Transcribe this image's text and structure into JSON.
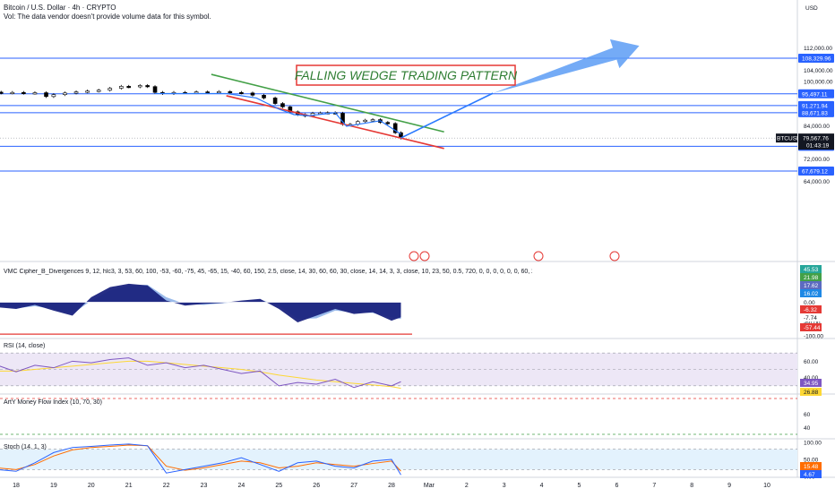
{
  "header": {
    "symbol_line": "Bitcoin / U.S. Dollar · 4h · CRYPTO",
    "vol_line": "Vol: The data vendor doesn't provide volume data for this symbol."
  },
  "currency_label": "USD",
  "annotation": {
    "text": "FALLING WEDGE TRADING PATTERN",
    "color": "#2e7d32",
    "border_color": "#e53935"
  },
  "symbol_tag": {
    "symbol": "BTCUSD",
    "price": "79,567.76",
    "countdown": "01:43:19"
  },
  "colors": {
    "level_line": "#2962ff",
    "upper_trendline": "#43a047",
    "lower_trendline": "#e53935",
    "projection": "#2979ff",
    "arrow": "#5c9cf5",
    "candle_up": "#ffffff",
    "candle_down": "#000000",
    "wave_dark": "#1a237e",
    "wave_light": "#8fb2e8",
    "rsi_line": "#7e57c2",
    "rsi_ma": "#fdd835",
    "stoch_k": "#2962ff",
    "stoch_d": "#ff6d00"
  },
  "chart_data": [
    {
      "type": "line",
      "title": "Bitcoin / U.S. Dollar · 4h · CRYPTO",
      "ylabel": "USD",
      "ylim": [
        62000,
        114000
      ],
      "y_ticks": [
        "112,000.00",
        "104,000.00",
        "100,000.00",
        "92,000.00",
        "84,000.00",
        "72,000.00",
        "64,000.00"
      ],
      "x_ticks": [
        "18",
        "19",
        "20",
        "21",
        "22",
        "23",
        "24",
        "25",
        "26",
        "27",
        "28",
        "Mar",
        "2",
        "3",
        "4",
        "5",
        "6",
        "7",
        "8",
        "9",
        "10"
      ],
      "levels": [
        {
          "label": "108,329.96",
          "value": 108329.96
        },
        {
          "label": "95,497.11",
          "value": 95497.11
        },
        {
          "label": "91,271.94",
          "value": 91271.94
        },
        {
          "label": "88,671.83",
          "value": 88671.83
        },
        {
          "label": "76,605.42",
          "value": 76605.42
        },
        {
          "label": "67,679.12",
          "value": 67679.12
        }
      ],
      "last_price": 79567.76,
      "series": [
        {
          "name": "BTCUSD",
          "points": [
            {
              "x": 17.0,
              "y": 95900
            },
            {
              "x": 17.3,
              "y": 96100
            },
            {
              "x": 17.6,
              "y": 95800
            },
            {
              "x": 17.9,
              "y": 96000
            },
            {
              "x": 18.2,
              "y": 95700
            },
            {
              "x": 18.5,
              "y": 95900
            },
            {
              "x": 18.8,
              "y": 94500
            },
            {
              "x": 19.0,
              "y": 95200
            },
            {
              "x": 19.3,
              "y": 95800
            },
            {
              "x": 19.6,
              "y": 96200
            },
            {
              "x": 19.9,
              "y": 96500
            },
            {
              "x": 20.2,
              "y": 96800
            },
            {
              "x": 20.5,
              "y": 97500
            },
            {
              "x": 20.8,
              "y": 98200
            },
            {
              "x": 21.0,
              "y": 98000
            },
            {
              "x": 21.3,
              "y": 98500
            },
            {
              "x": 21.5,
              "y": 98100
            },
            {
              "x": 21.7,
              "y": 96000
            },
            {
              "x": 21.9,
              "y": 95600
            },
            {
              "x": 22.2,
              "y": 96000
            },
            {
              "x": 22.5,
              "y": 95900
            },
            {
              "x": 22.8,
              "y": 96200
            },
            {
              "x": 23.1,
              "y": 96100
            },
            {
              "x": 23.4,
              "y": 96300
            },
            {
              "x": 23.7,
              "y": 96000
            },
            {
              "x": 24.0,
              "y": 95800
            },
            {
              "x": 24.3,
              "y": 95000
            },
            {
              "x": 24.6,
              "y": 94000
            },
            {
              "x": 24.9,
              "y": 92000
            },
            {
              "x": 25.1,
              "y": 90800
            },
            {
              "x": 25.3,
              "y": 89000
            },
            {
              "x": 25.5,
              "y": 88000
            },
            {
              "x": 25.7,
              "y": 87500
            },
            {
              "x": 25.9,
              "y": 88500
            },
            {
              "x": 26.1,
              "y": 88600
            },
            {
              "x": 26.3,
              "y": 88700
            },
            {
              "x": 26.5,
              "y": 88500
            },
            {
              "x": 26.7,
              "y": 84500
            },
            {
              "x": 26.9,
              "y": 84500
            },
            {
              "x": 27.1,
              "y": 85500
            },
            {
              "x": 27.3,
              "y": 86000
            },
            {
              "x": 27.5,
              "y": 86200
            },
            {
              "x": 27.7,
              "y": 85200
            },
            {
              "x": 27.9,
              "y": 84800
            },
            {
              "x": 28.1,
              "y": 81500
            },
            {
              "x": 28.25,
              "y": 79567.76
            }
          ]
        }
      ],
      "upper_trendline": [
        {
          "x": 23.2,
          "y": 102500
        },
        {
          "x": 29.4,
          "y": 81800
        }
      ],
      "lower_trendline": [
        {
          "x": 23.6,
          "y": 94800
        },
        {
          "x": 29.4,
          "y": 75800
        }
      ],
      "projection": [
        {
          "x": 28.25,
          "y": 79600
        },
        {
          "x": 30.7,
          "y": 95700
        }
      ],
      "projection_arrow": [
        {
          "x": 30.7,
          "y": 95700
        },
        {
          "x": 34.6,
          "y": 112800
        }
      ]
    },
    {
      "type": "area",
      "title": "VMC Cipher_B_Divergences 9, 12, hlc3, 3, 53, 60, 100, -53, -60, -75, 45, -65, 15, -40, 60, 150, 2.5, close, 14, 30, 60, 60, 30, close, 14, 14, 3, 3, close, 10, 23, 50, 0.5, 720, 0, 0, 0, 0, 0, 0, 60, 240, 0, 0, 240",
      "ylim": [
        -100,
        100
      ],
      "y_ticks": [
        "60.00",
        "0.00",
        "-60.00",
        "-100.00"
      ],
      "value_tags": [
        {
          "label": "45.53",
          "color": "#26a69a"
        },
        {
          "label": "21.98",
          "color": "#43a047"
        },
        {
          "label": "17.62",
          "color": "#5c6bc0"
        },
        {
          "label": "16.02",
          "color": "#1e88e5"
        },
        {
          "label": "-6.32",
          "color": "#e53935"
        },
        {
          "label": "-7.74",
          "color": "#ffffff"
        },
        {
          "label": "-57.44",
          "color": "#e53935"
        }
      ],
      "x": [
        17.0,
        17.5,
        18.0,
        18.5,
        19.0,
        19.5,
        20.0,
        20.5,
        21.0,
        21.5,
        22.0,
        22.5,
        23.0,
        23.5,
        24.0,
        24.5,
        25.0,
        25.5,
        26.0,
        26.5,
        27.0,
        27.5,
        28.0,
        28.25
      ],
      "series": [
        {
          "values": [
            -5,
            -15,
            -20,
            -8,
            -25,
            -40,
            15,
            45,
            55,
            50,
            5,
            -10,
            -5,
            -2,
            5,
            10,
            -20,
            -60,
            -40,
            -20,
            -35,
            -30,
            -55,
            -45
          ]
        },
        {
          "values": [
            -5,
            -10,
            -18,
            -12,
            -20,
            -35,
            5,
            35,
            50,
            52,
            15,
            -5,
            -8,
            -3,
            2,
            8,
            -10,
            -50,
            -48,
            -25,
            -30,
            -32,
            -45,
            -50
          ]
        }
      ]
    },
    {
      "type": "line",
      "title": "RSI (14, close)",
      "ylim": [
        20,
        80
      ],
      "y_ticks": [
        "60.00",
        "40.00"
      ],
      "value_tags": [
        {
          "label": "34.95",
          "color": "#7e57c2"
        },
        {
          "label": "26.88",
          "color": "#fdd835"
        }
      ],
      "x": [
        17.0,
        17.5,
        18.0,
        18.5,
        19.0,
        19.5,
        20.0,
        20.5,
        21.0,
        21.5,
        22.0,
        22.5,
        23.0,
        23.5,
        24.0,
        24.5,
        25.0,
        25.5,
        26.0,
        26.5,
        27.0,
        27.5,
        28.0,
        28.25
      ],
      "series": [
        {
          "values": [
            50,
            55,
            47,
            55,
            52,
            60,
            58,
            62,
            64,
            55,
            58,
            52,
            55,
            50,
            45,
            48,
            30,
            34,
            32,
            38,
            28,
            35,
            30,
            35
          ]
        },
        {
          "values": [
            45,
            48,
            48,
            50,
            52,
            54,
            56,
            58,
            60,
            60,
            58,
            56,
            54,
            52,
            50,
            47,
            43,
            40,
            37,
            35,
            33,
            31,
            29,
            27
          ]
        }
      ]
    },
    {
      "type": "line",
      "title": "ArtY Money Flow Index (10, 70, 30)",
      "ylim": [
        20,
        80
      ],
      "y_ticks": [
        "60",
        "40"
      ],
      "x": [],
      "series": []
    },
    {
      "type": "line",
      "title": "Stoch (14, 1, 3)",
      "ylim": [
        0,
        100
      ],
      "y_ticks": [
        "100.00",
        "50.00",
        "0.00"
      ],
      "value_tags": [
        {
          "label": "15.48",
          "color": "#ff6d00"
        },
        {
          "label": "4.67",
          "color": "#2962ff"
        }
      ],
      "x": [
        17.0,
        17.5,
        18.0,
        18.5,
        19.0,
        19.5,
        20.0,
        20.5,
        21.0,
        21.5,
        22.0,
        22.5,
        23.0,
        23.5,
        24.0,
        24.5,
        25.0,
        25.5,
        26.0,
        26.5,
        27.0,
        27.5,
        28.0,
        28.25
      ],
      "series": [
        {
          "values": [
            30,
            20,
            15,
            40,
            70,
            85,
            88,
            92,
            95,
            90,
            10,
            20,
            30,
            40,
            55,
            35,
            15,
            40,
            45,
            30,
            25,
            45,
            50,
            4.67
          ]
        },
        {
          "values": [
            35,
            25,
            20,
            35,
            60,
            78,
            85,
            88,
            92,
            90,
            30,
            18,
            25,
            35,
            45,
            40,
            25,
            30,
            40,
            35,
            30,
            38,
            45,
            15.48
          ]
        }
      ]
    }
  ]
}
